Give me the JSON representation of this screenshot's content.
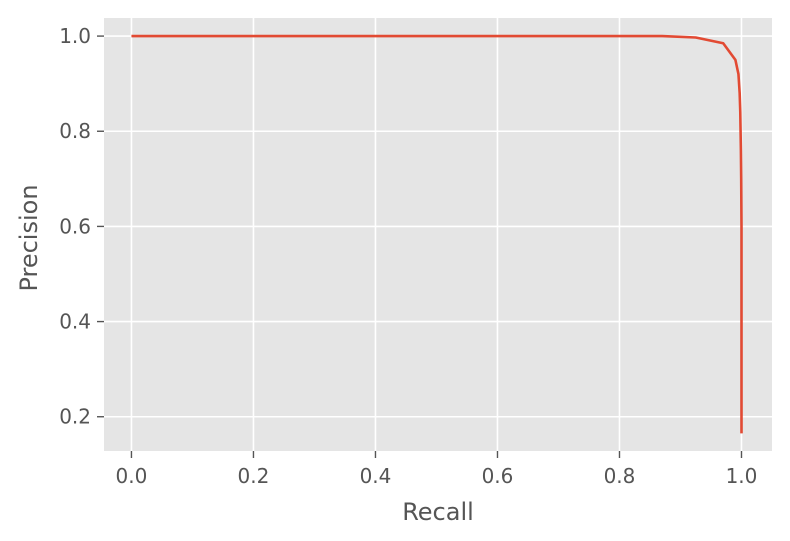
{
  "chart_data": {
    "type": "line",
    "title": "",
    "xlabel": "Recall",
    "ylabel": "Precision",
    "xlim": [
      -0.045,
      1.05
    ],
    "ylim": [
      0.128,
      1.038
    ],
    "xticks": [
      0.0,
      0.2,
      0.4,
      0.6,
      0.8,
      1.0
    ],
    "xtick_labels": [
      "0.0",
      "0.2",
      "0.4",
      "0.6",
      "0.8",
      "1.0"
    ],
    "yticks": [
      0.2,
      0.4,
      0.6,
      0.8,
      1.0
    ],
    "ytick_labels": [
      "0.2",
      "0.4",
      "0.6",
      "0.8",
      "1.0"
    ],
    "grid": true,
    "legend": "none",
    "colors": {
      "background": "#e5e5e5",
      "grid": "#ffffff",
      "line": "#e24a33",
      "text": "#555555"
    },
    "series": [
      {
        "x": [
          0.0,
          0.2,
          0.4,
          0.6,
          0.8,
          0.87,
          0.925,
          0.97,
          0.99,
          0.995,
          0.997,
          0.998,
          0.9985,
          0.999,
          0.9995,
          1.0,
          1.0,
          1.0
        ],
        "y": [
          1.0,
          1.0,
          1.0,
          1.0,
          1.0,
          1.0,
          0.997,
          0.985,
          0.95,
          0.92,
          0.88,
          0.84,
          0.8,
          0.76,
          0.7,
          0.6,
          0.4,
          0.165
        ]
      }
    ]
  }
}
